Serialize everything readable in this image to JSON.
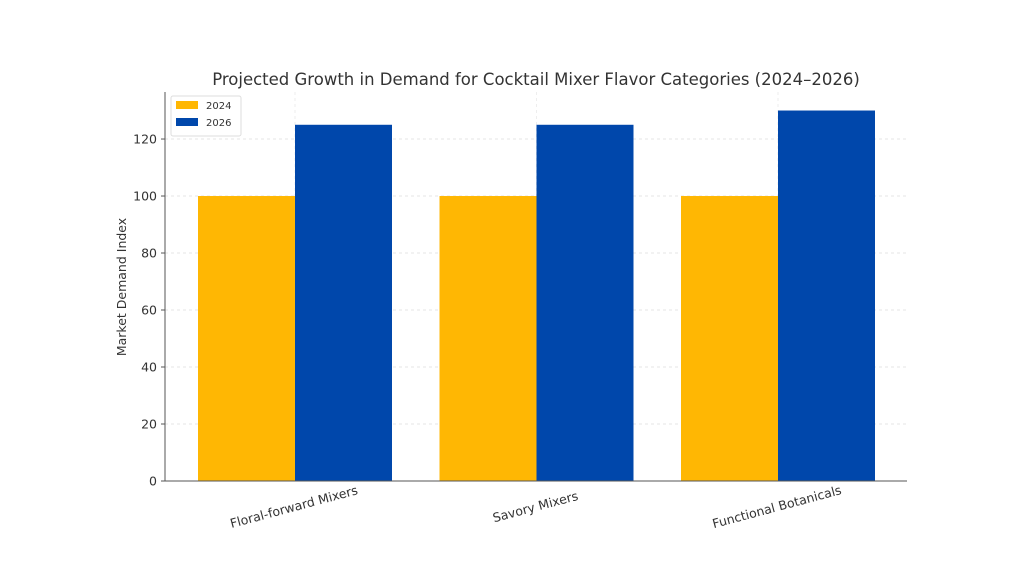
{
  "chart_data": {
    "type": "bar",
    "title": "Projected Growth in Demand for Cocktail Mixer Flavor Categories (2024–2026)",
    "xlabel": "",
    "ylabel": "Market Demand Index",
    "categories": [
      "Floral-forward Mixers",
      "Savory Mixers",
      "Functional Botanicals"
    ],
    "series": [
      {
        "name": "2024",
        "values": [
          100,
          100,
          100
        ],
        "color": "#FFB703"
      },
      {
        "name": "2026",
        "values": [
          125,
          125,
          130
        ],
        "color": "#0047AB"
      }
    ],
    "ylim": [
      0,
      136.5
    ],
    "yticks": [
      0,
      20,
      40,
      60,
      80,
      100,
      120
    ],
    "grid": true,
    "legend_position": "top-left"
  }
}
